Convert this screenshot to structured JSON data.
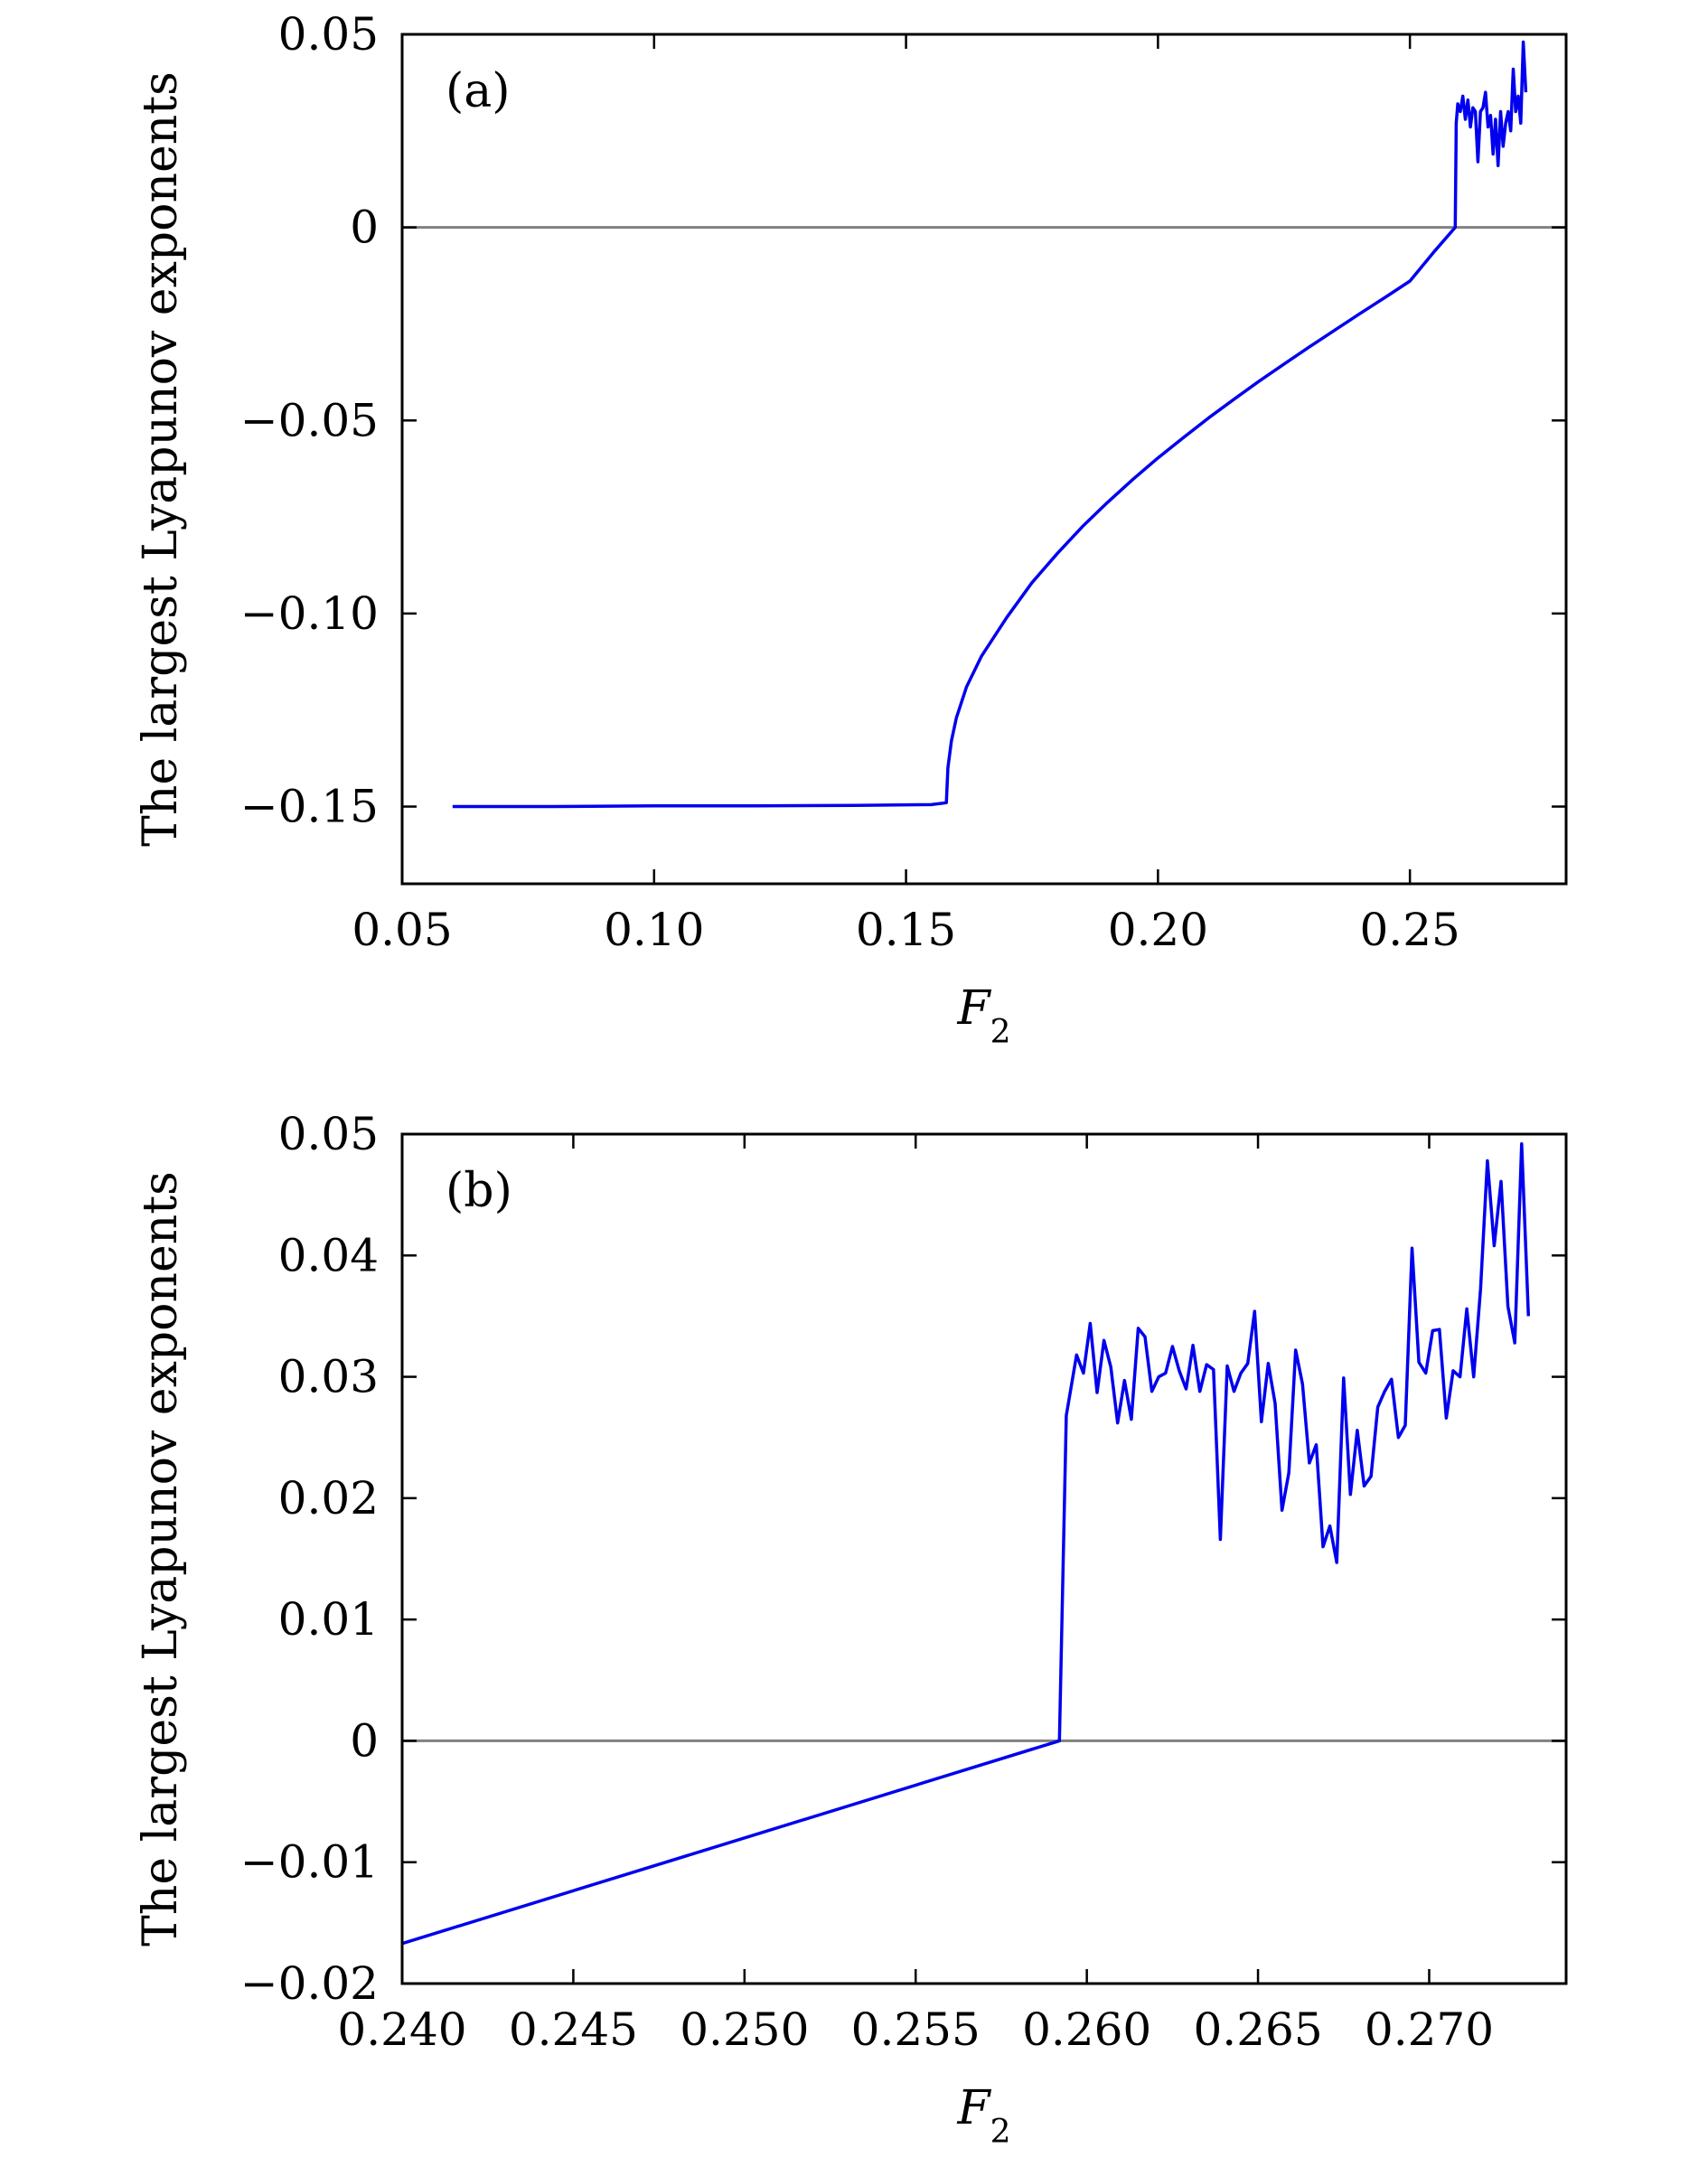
{
  "chart_data": [
    {
      "type": "line",
      "panel_label": "(a)",
      "xlabel_main": "F",
      "xlabel_sub": "2",
      "ylabel": "The largest Lyapunov exponents",
      "xlim": [
        0.05,
        0.281
      ],
      "ylim": [
        -0.17,
        0.05
      ],
      "xticks": [
        0.05,
        0.1,
        0.15,
        0.2,
        0.25
      ],
      "xtick_labels": [
        "0.05",
        "0.10",
        "0.15",
        "0.20",
        "0.25"
      ],
      "yticks": [
        0.05,
        0,
        -0.05,
        -0.1,
        -0.15
      ],
      "ytick_labels": [
        "0.05",
        "0",
        "−0.05",
        "−0.10",
        "−0.15"
      ],
      "reference_line_y": 0,
      "grid": false,
      "colors": {
        "series": "#0000ee",
        "reference": "#808080",
        "axes": "#000000"
      },
      "series": [
        {
          "x": [
            0.06,
            0.08,
            0.1,
            0.12,
            0.14,
            0.155,
            0.158,
            0.1583,
            0.159,
            0.16,
            0.162,
            0.165,
            0.17,
            0.175,
            0.18,
            0.185,
            0.19,
            0.195,
            0.2,
            0.205,
            0.21,
            0.215,
            0.22,
            0.225,
            0.23,
            0.235,
            0.24,
            0.245,
            0.25,
            0.255,
            0.259,
            0.2592,
            0.2595,
            0.26,
            0.2605,
            0.261,
            0.2615,
            0.262,
            0.2625,
            0.263,
            0.2635,
            0.264,
            0.2645,
            0.265,
            0.2655,
            0.266,
            0.2665,
            0.267,
            0.2675,
            0.268,
            0.2685,
            0.269,
            0.2695,
            0.27,
            0.2705,
            0.271,
            0.2715,
            0.272,
            0.2725,
            0.273
          ],
          "y": [
            -0.15,
            -0.15,
            -0.1498,
            -0.1498,
            -0.1497,
            -0.1495,
            -0.149,
            -0.14,
            -0.133,
            -0.127,
            -0.119,
            -0.111,
            -0.101,
            -0.092,
            -0.0845,
            -0.0775,
            -0.0712,
            -0.0653,
            -0.0597,
            -0.0545,
            -0.0494,
            -0.0446,
            -0.0399,
            -0.0354,
            -0.031,
            -0.0267,
            -0.0224,
            -0.0182,
            -0.0139,
            -0.006,
            0.0,
            0.027,
            0.032,
            0.03,
            0.034,
            0.028,
            0.033,
            0.026,
            0.031,
            0.03,
            0.017,
            0.03,
            0.031,
            0.035,
            0.026,
            0.029,
            0.019,
            0.028,
            0.016,
            0.03,
            0.021,
            0.027,
            0.03,
            0.025,
            0.041,
            0.03,
            0.034,
            0.027,
            0.048,
            0.035
          ]
        }
      ]
    },
    {
      "type": "line",
      "panel_label": "(b)",
      "xlabel_main": "F",
      "xlabel_sub": "2",
      "ylabel": "The largest Lyapunov exponents",
      "xlim": [
        0.24,
        0.274
      ],
      "ylim": [
        -0.02,
        0.05
      ],
      "xticks": [
        0.24,
        0.245,
        0.25,
        0.255,
        0.26,
        0.265,
        0.27
      ],
      "xtick_labels": [
        "0.240",
        "0.245",
        "0.250",
        "0.255",
        "0.260",
        "0.265",
        "0.270"
      ],
      "yticks": [
        0.05,
        0.04,
        0.03,
        0.02,
        0.01,
        0,
        -0.01,
        -0.02
      ],
      "ytick_labels": [
        "0.05",
        "0.04",
        "0.03",
        "0.02",
        "0.01",
        "0",
        "−0.01",
        "−0.02"
      ],
      "reference_line_y": 0,
      "grid": false,
      "colors": {
        "series": "#0000ee",
        "reference": "#808080",
        "axes": "#000000"
      },
      "series": [
        {
          "x": [
            0.24,
            0.2592,
            0.2594,
            0.2597,
            0.2599,
            0.2601,
            0.2603,
            0.2605,
            0.2607,
            0.2609,
            0.2611,
            0.2613,
            0.2615,
            0.2617,
            0.2619,
            0.2621,
            0.2623,
            0.2625,
            0.2627,
            0.2629,
            0.2631,
            0.2633,
            0.2635,
            0.2637,
            0.2639,
            0.2641,
            0.2643,
            0.2645,
            0.2647,
            0.2649,
            0.2651,
            0.2653,
            0.2655,
            0.2657,
            0.2659,
            0.2661,
            0.2663,
            0.2665,
            0.2667,
            0.2669,
            0.2671,
            0.2673,
            0.2675,
            0.2677,
            0.2679,
            0.2681,
            0.2683,
            0.2685,
            0.2687,
            0.2689,
            0.2691,
            0.2693,
            0.2695,
            0.2697,
            0.2699,
            0.2701,
            0.2703,
            0.2705,
            0.2707,
            0.2709,
            0.2711,
            0.2713,
            0.2715,
            0.2717,
            0.2719,
            0.2721,
            0.2723,
            0.2725,
            0.2727,
            0.2729
          ],
          "y": [
            -0.0167,
            0.0,
            0.0268,
            0.0318,
            0.0303,
            0.0344,
            0.0287,
            0.033,
            0.0308,
            0.0262,
            0.0297,
            0.0265,
            0.034,
            0.0333,
            0.0288,
            0.03,
            0.0303,
            0.0325,
            0.0305,
            0.029,
            0.0326,
            0.0288,
            0.031,
            0.0306,
            0.0166,
            0.0309,
            0.0288,
            0.0303,
            0.0311,
            0.0354,
            0.0263,
            0.0311,
            0.0278,
            0.019,
            0.0221,
            0.0322,
            0.0294,
            0.0229,
            0.0244,
            0.016,
            0.0177,
            0.0147,
            0.0299,
            0.0203,
            0.0256,
            0.021,
            0.0218,
            0.0275,
            0.0288,
            0.0298,
            0.025,
            0.026,
            0.0406,
            0.0312,
            0.0303,
            0.0338,
            0.0339,
            0.0266,
            0.0305,
            0.03,
            0.0356,
            0.03,
            0.0372,
            0.0478,
            0.0408,
            0.0461,
            0.0358,
            0.0328,
            0.0492,
            0.035
          ]
        }
      ]
    }
  ]
}
